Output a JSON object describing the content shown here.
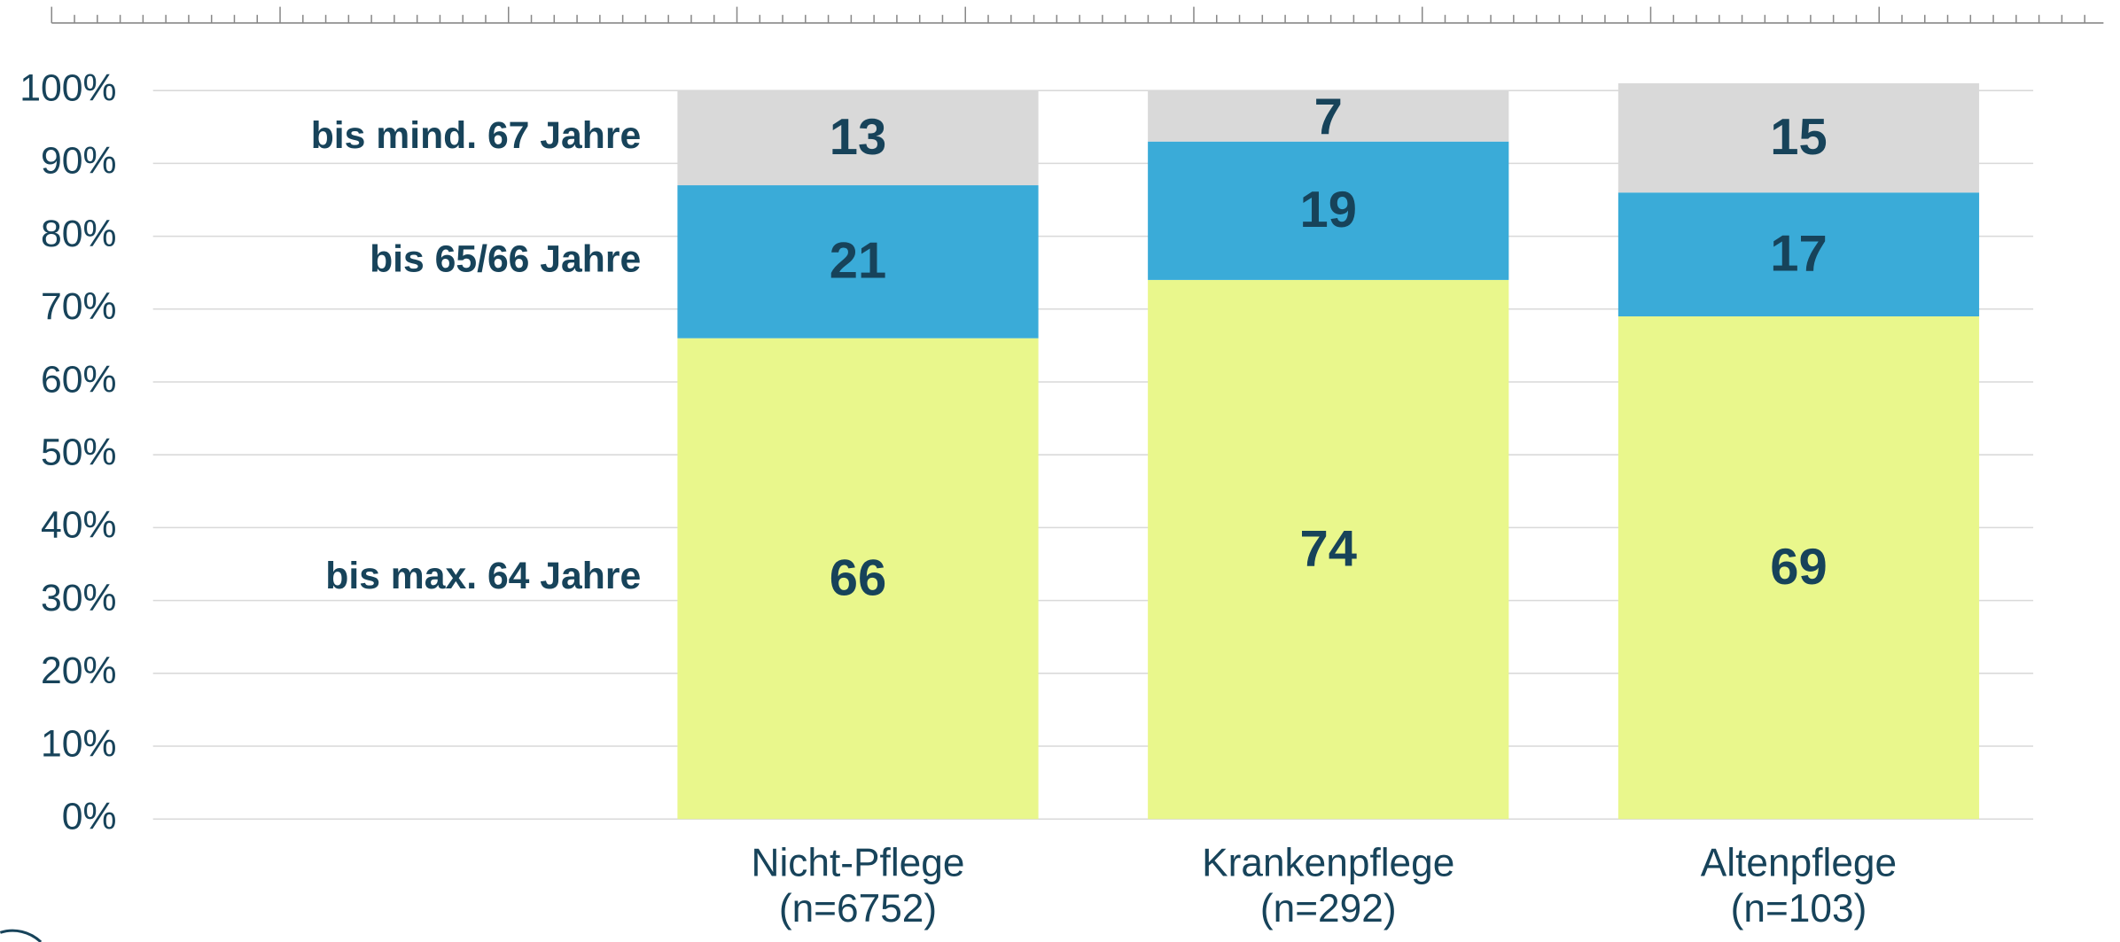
{
  "chart_data": {
    "type": "stacked-bar",
    "categories": [
      "Nicht-Pflege\n(n=6752)",
      "Krankenpflege\n(n=292)",
      "Altenpflege\n(n=103)"
    ],
    "series": [
      {
        "name": "bis max. 64 Jahre",
        "color": "#e9f78c",
        "values": [
          66,
          74,
          69
        ]
      },
      {
        "name": "bis 65/66 Jahre",
        "color": "#3aabd8",
        "values": [
          21,
          19,
          17
        ]
      },
      {
        "name": "bis mind. 67 Jahre",
        "color": "#d9d9d9",
        "values": [
          13,
          7,
          15
        ]
      }
    ],
    "ylim": [
      0,
      100
    ],
    "yticks": [
      {
        "value": 0,
        "label": "0%"
      },
      {
        "value": 10,
        "label": "10%"
      },
      {
        "value": 20,
        "label": "20%"
      },
      {
        "value": 30,
        "label": "30%"
      },
      {
        "value": 40,
        "label": "40%"
      },
      {
        "value": 50,
        "label": "50%"
      },
      {
        "value": 60,
        "label": "60%"
      },
      {
        "value": 70,
        "label": "70%"
      },
      {
        "value": 80,
        "label": "80%"
      },
      {
        "value": 90,
        "label": "90%"
      },
      {
        "value": 100,
        "label": "100%"
      }
    ],
    "grid": true
  }
}
